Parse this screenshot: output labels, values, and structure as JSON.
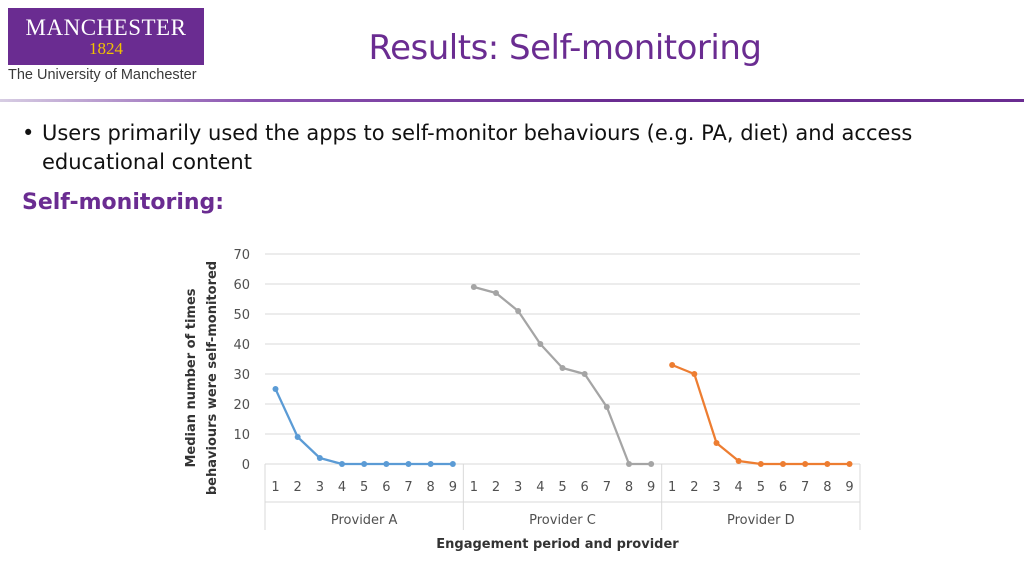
{
  "logo": {
    "word": "MANCHESTER",
    "year": "1824",
    "subtitle": "The University of Manchester"
  },
  "title": "Results: Self-monitoring",
  "bullet": "Users primarily used the apps to self-monitor behaviours (e.g. PA, diet) and access educational content",
  "subheading": "Self-monitoring:",
  "chart_data": {
    "type": "line",
    "ylabel": "Median number of times behaviours were self-monitored",
    "xlabel": "Engagement period and provider",
    "ylim": [
      0,
      70
    ],
    "yticks": [
      0,
      10,
      20,
      30,
      40,
      50,
      60,
      70
    ],
    "grid": true,
    "legend": "none",
    "groups": [
      {
        "name": "Provider A",
        "color": "#5b9bd5",
        "x": [
          1,
          2,
          3,
          4,
          5,
          6,
          7,
          8,
          9
        ],
        "values": [
          25,
          9,
          2,
          0,
          0,
          0,
          0,
          0,
          0
        ]
      },
      {
        "name": "Provider C",
        "color": "#a5a5a5",
        "x": [
          1,
          2,
          3,
          4,
          5,
          6,
          7,
          8,
          9
        ],
        "values": [
          59,
          57,
          51,
          40,
          32,
          30,
          19,
          0,
          0
        ]
      },
      {
        "name": "Provider D",
        "color": "#ed7d31",
        "x": [
          1,
          2,
          3,
          4,
          5,
          6,
          7,
          8,
          9
        ],
        "values": [
          33,
          30,
          7,
          1,
          0,
          0,
          0,
          0,
          0
        ]
      }
    ]
  }
}
